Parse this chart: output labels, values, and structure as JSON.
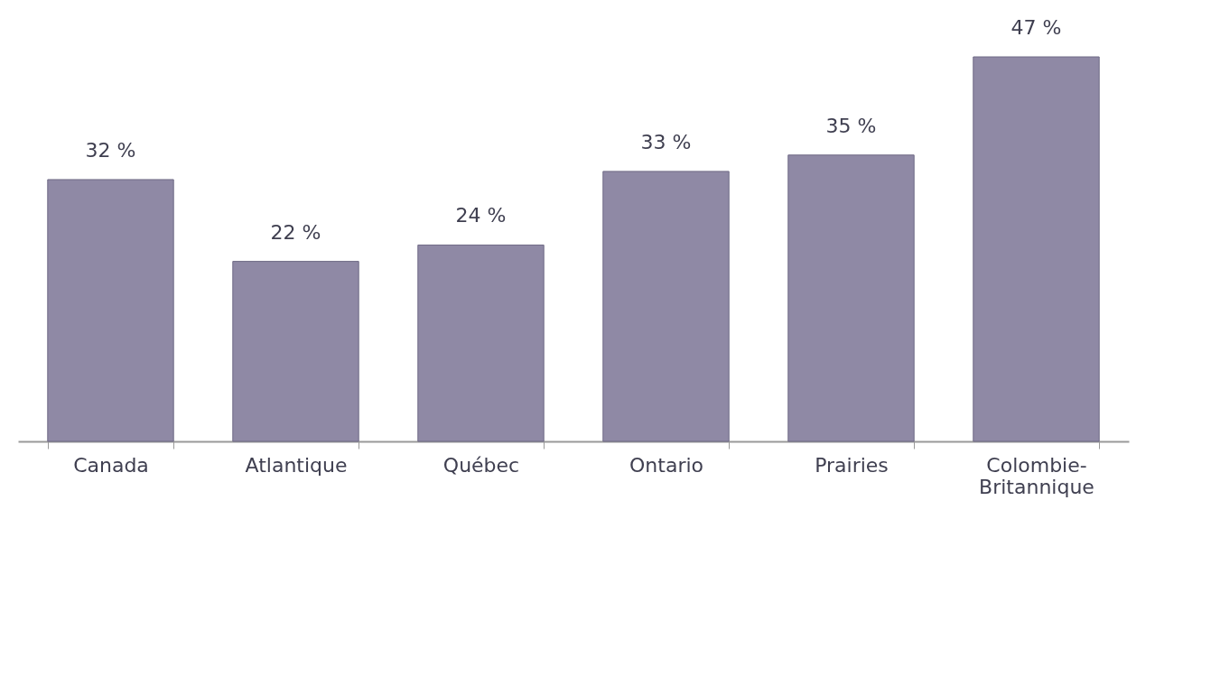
{
  "chart_data": {
    "type": "bar",
    "categories": [
      "Canada",
      "Atlantique",
      "Québec",
      "Ontario",
      "Prairies",
      "Colombie-Britannique"
    ],
    "values": [
      32,
      22,
      24,
      33,
      35,
      47
    ],
    "value_labels": [
      "32 %",
      "22 %",
      "24 %",
      "33 %",
      "35 %",
      "47 %"
    ],
    "color": "#8f89a5",
    "grid": false
  }
}
